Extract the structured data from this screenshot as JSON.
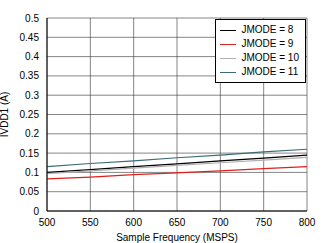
{
  "chart_data": {
    "type": "line",
    "x_label": "Sample Frequency (MSPS)",
    "y_label": "IVDD1 (A)",
    "x": [
      500,
      550,
      600,
      650,
      700,
      750,
      800
    ],
    "series": [
      {
        "name": "JMODE = 8",
        "color": "#000000",
        "values": [
          0.1,
          0.107,
          0.115,
          0.122,
          0.13,
          0.137,
          0.145
        ]
      },
      {
        "name": "JMODE = 9",
        "color": "#e0201b",
        "values": [
          0.083,
          0.088,
          0.094,
          0.099,
          0.104,
          0.11,
          0.115
        ]
      },
      {
        "name": "JMODE = 10",
        "color": "#b0b0b0",
        "values": [
          0.097,
          0.104,
          0.111,
          0.118,
          0.125,
          0.132,
          0.139
        ]
      },
      {
        "name": "JMODE = 11",
        "color": "#3d6b75",
        "values": [
          0.115,
          0.123,
          0.13,
          0.138,
          0.145,
          0.153,
          0.16
        ]
      }
    ],
    "xlim": [
      500,
      800
    ],
    "xticks": [
      500,
      550,
      600,
      650,
      700,
      750,
      800
    ],
    "ylim": [
      0,
      0.5
    ],
    "yticks": [
      0,
      0.05,
      0.1,
      0.15,
      0.2,
      0.25,
      0.3,
      0.35,
      0.4,
      0.45,
      0.5
    ],
    "grid": true,
    "legend": "upper right"
  }
}
